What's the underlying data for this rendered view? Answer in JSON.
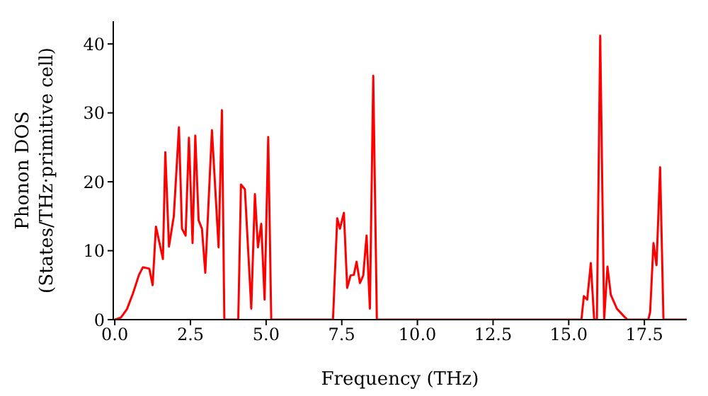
{
  "chart_data": {
    "type": "line",
    "xlabel": "Frequency (THz)",
    "ylabel": "Phonon DOS\n(States/THz·primitive cell)",
    "x": [
      0,
      0.2,
      0.4,
      0.6,
      0.8,
      0.93,
      1.14,
      1.25,
      1.36,
      1.59,
      1.67,
      1.79,
      1.95,
      2.12,
      2.22,
      2.34,
      2.45,
      2.57,
      2.66,
      2.77,
      2.88,
      2.99,
      3.21,
      3.43,
      3.54,
      3.62,
      4.08,
      4.17,
      4.3,
      4.51,
      4.63,
      4.73,
      4.84,
      4.95,
      5.07,
      5.17,
      7.21,
      7.35,
      7.44,
      7.57,
      7.68,
      7.79,
      7.9,
      7.99,
      8.1,
      8.21,
      8.32,
      8.43,
      8.54,
      8.66,
      15.42,
      15.5,
      15.61,
      15.73,
      15.84,
      15.93,
      16.04,
      16.17,
      16.28,
      16.39,
      16.59,
      16.82,
      16.94,
      17.63,
      17.69,
      17.8,
      17.9,
      18.02,
      18.13,
      18.9
    ],
    "series": [
      {
        "color": "#ff0000",
        "values": [
          0,
          0.3,
          1.5,
          3.8,
          6.5,
          7.6,
          7.4,
          5.0,
          13.5,
          8.8,
          24.3,
          10.6,
          15,
          27.9,
          13.2,
          12.2,
          26.4,
          11.1,
          26.7,
          14.4,
          13.2,
          6.8,
          27.5,
          10.5,
          30.4,
          0,
          0,
          19.6,
          18.9,
          1.6,
          18.2,
          10.5,
          13.9,
          2.9,
          26.5,
          0,
          0,
          14.7,
          13.2,
          15.5,
          4.6,
          6.4,
          6.5,
          8.4,
          5.3,
          6.4,
          12.2,
          1.6,
          35.4,
          0,
          0,
          3.4,
          2.9,
          8.2,
          0,
          0,
          41.2,
          0,
          7.7,
          3.6,
          1.6,
          0.5,
          0,
          0,
          1.1,
          11.1,
          7.9,
          22.1,
          0,
          0
        ]
      }
    ],
    "xlim": [
      -0.05,
      18.9
    ],
    "ylim": [
      0,
      43.3
    ],
    "xticks": [
      {
        "value": 0,
        "label": "0.0"
      },
      {
        "value": 2.5,
        "label": "2.5"
      },
      {
        "value": 5,
        "label": "5.0"
      },
      {
        "value": 7.5,
        "label": "7.5"
      },
      {
        "value": 10,
        "label": "10.0"
      },
      {
        "value": 12.5,
        "label": "12.5"
      },
      {
        "value": 15,
        "label": "15.0"
      },
      {
        "value": 17.5,
        "label": "17.5"
      }
    ],
    "yticks": [
      0,
      10,
      20,
      30,
      40
    ],
    "grid": false,
    "legend": false,
    "marker": "none",
    "line_style": "solid"
  }
}
